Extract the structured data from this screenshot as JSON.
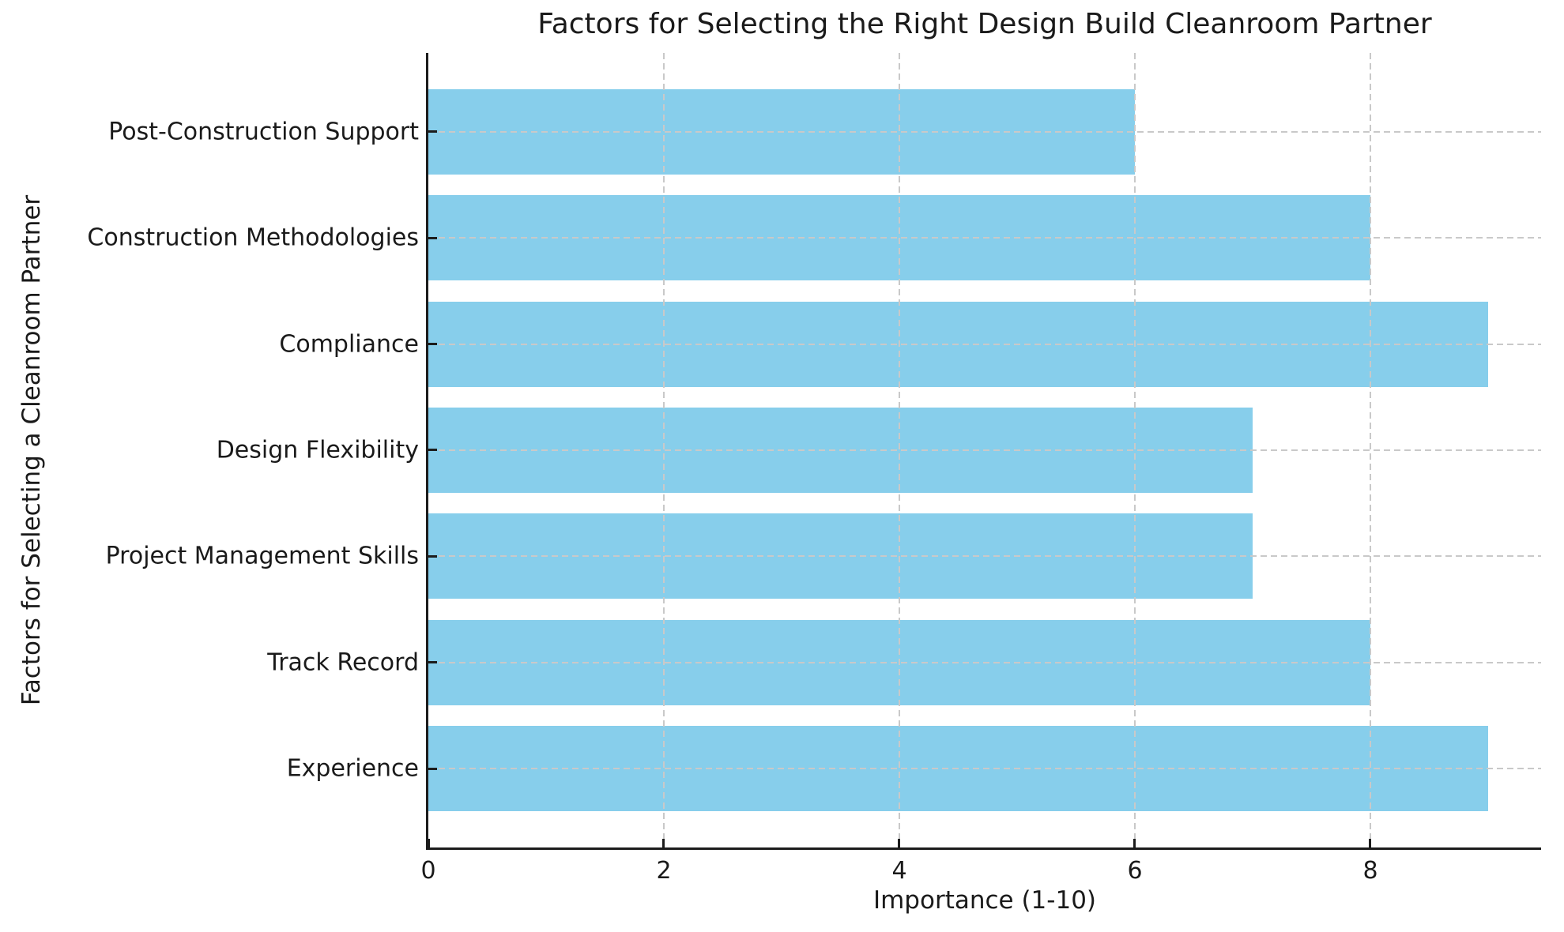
{
  "chart_data": {
    "type": "bar",
    "orientation": "horizontal",
    "title": "Factors for Selecting the Right Design Build Cleanroom Partner",
    "xlabel": "Importance (1-10)",
    "ylabel": "Factors for Selecting a Cleanroom Partner",
    "categories": [
      "Post-Construction Support",
      "Construction Methodologies",
      "Compliance",
      "Design Flexibility",
      "Project Management Skills",
      "Track Record",
      "Experience"
    ],
    "values": [
      6,
      8,
      9,
      7,
      7,
      8,
      9
    ],
    "x_ticks": [
      0,
      2,
      4,
      6,
      8
    ],
    "xlim": [
      0,
      9.45
    ],
    "grid": "dashed",
    "legend": "none",
    "bar_color": "#87CEEB",
    "grid_color": "#c9c9c9",
    "text_color": "#1a1a1a",
    "spine_color": "#1c1c1c"
  }
}
